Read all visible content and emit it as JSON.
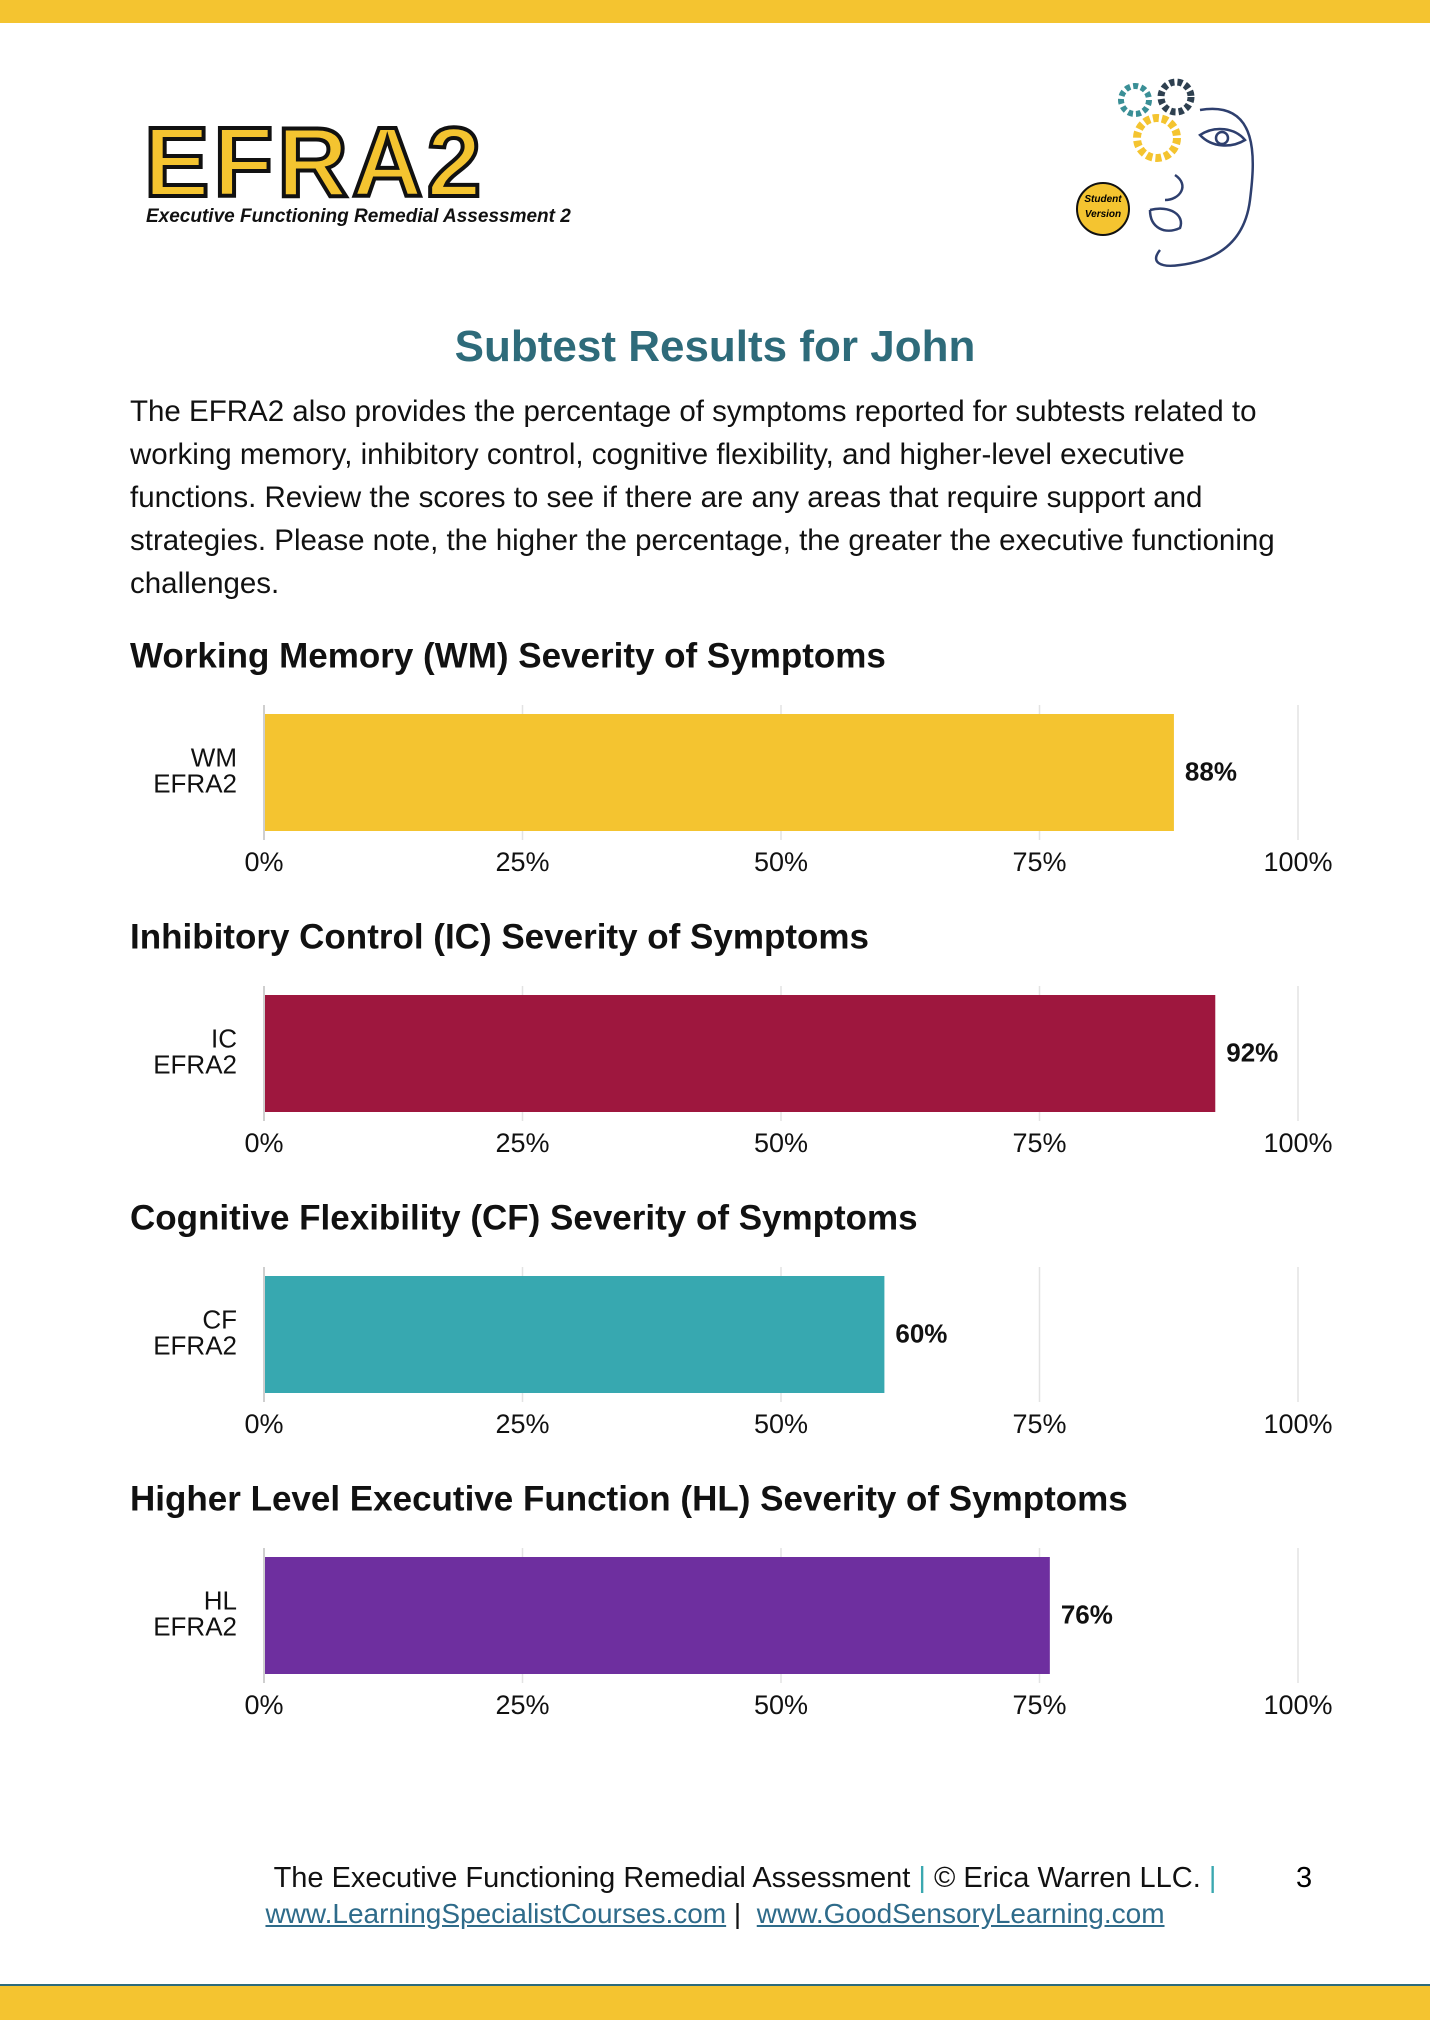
{
  "header": {
    "logo_title": "EFRA2",
    "logo_subtitle": "Executive Functioning Remedial Assessment 2",
    "badge": [
      "Student",
      "Version"
    ]
  },
  "title": "Subtest Results for John",
  "intro": "The EFRA2 also provides the percentage of symptoms reported for subtests related to working memory, inhibitory control, cognitive flexibility, and higher-level executive functions. Review the scores to see if there are any areas that require support and strategies. Please note, the higher the percentage, the greater the executive functioning challenges.",
  "chart_data": [
    {
      "type": "bar",
      "title": "Working Memory (WM) Severity of Symptoms",
      "categories": [
        [
          "WM",
          "EFRA2"
        ]
      ],
      "values": [
        88
      ],
      "value_labels": [
        "88%"
      ],
      "color": "#f4c430",
      "xlim": [
        0,
        100
      ],
      "xticks": [
        {
          "value": 0,
          "label": "0%"
        },
        {
          "value": 25,
          "label": "25%"
        },
        {
          "value": 50,
          "label": "50%"
        },
        {
          "value": 75,
          "label": "75%"
        },
        {
          "value": 100,
          "label": "100%"
        }
      ],
      "grid": true
    },
    {
      "type": "bar",
      "title": "Inhibitory Control (IC) Severity of Symptoms",
      "categories": [
        [
          "IC",
          "EFRA2"
        ]
      ],
      "values": [
        92
      ],
      "value_labels": [
        "92%"
      ],
      "color": "#9e173e",
      "xlim": [
        0,
        100
      ],
      "xticks": [
        {
          "value": 0,
          "label": "0%"
        },
        {
          "value": 25,
          "label": "25%"
        },
        {
          "value": 50,
          "label": "50%"
        },
        {
          "value": 75,
          "label": "75%"
        },
        {
          "value": 100,
          "label": "100%"
        }
      ],
      "grid": true
    },
    {
      "type": "bar",
      "title": "Cognitive Flexibility (CF) Severity of Symptoms",
      "categories": [
        [
          "CF",
          "EFRA2"
        ]
      ],
      "values": [
        60
      ],
      "value_labels": [
        "60%"
      ],
      "color": "#37a8b0",
      "xlim": [
        0,
        100
      ],
      "xticks": [
        {
          "value": 0,
          "label": "0%"
        },
        {
          "value": 25,
          "label": "25%"
        },
        {
          "value": 50,
          "label": "50%"
        },
        {
          "value": 75,
          "label": "75%"
        },
        {
          "value": 100,
          "label": "100%"
        }
      ],
      "grid": true
    },
    {
      "type": "bar",
      "title": "Higher Level Executive Function (HL) Severity of Symptoms",
      "categories": [
        [
          "HL",
          "EFRA2"
        ]
      ],
      "values": [
        76
      ],
      "value_labels": [
        "76%"
      ],
      "color": "#6e2f9f",
      "xlim": [
        0,
        100
      ],
      "xticks": [
        {
          "value": 0,
          "label": "0%"
        },
        {
          "value": 25,
          "label": "25%"
        },
        {
          "value": 50,
          "label": "50%"
        },
        {
          "value": 75,
          "label": "75%"
        },
        {
          "value": 100,
          "label": "100%"
        }
      ],
      "grid": true
    }
  ],
  "footer": {
    "line1_a": "The Executive Functioning Remedial Assessment",
    "line1_b": "© Erica Warren LLC.",
    "separator": "|",
    "link1": "www.LearningSpecialistCourses.com",
    "link2": "www.GoodSensoryLearning.com",
    "page": "3"
  }
}
